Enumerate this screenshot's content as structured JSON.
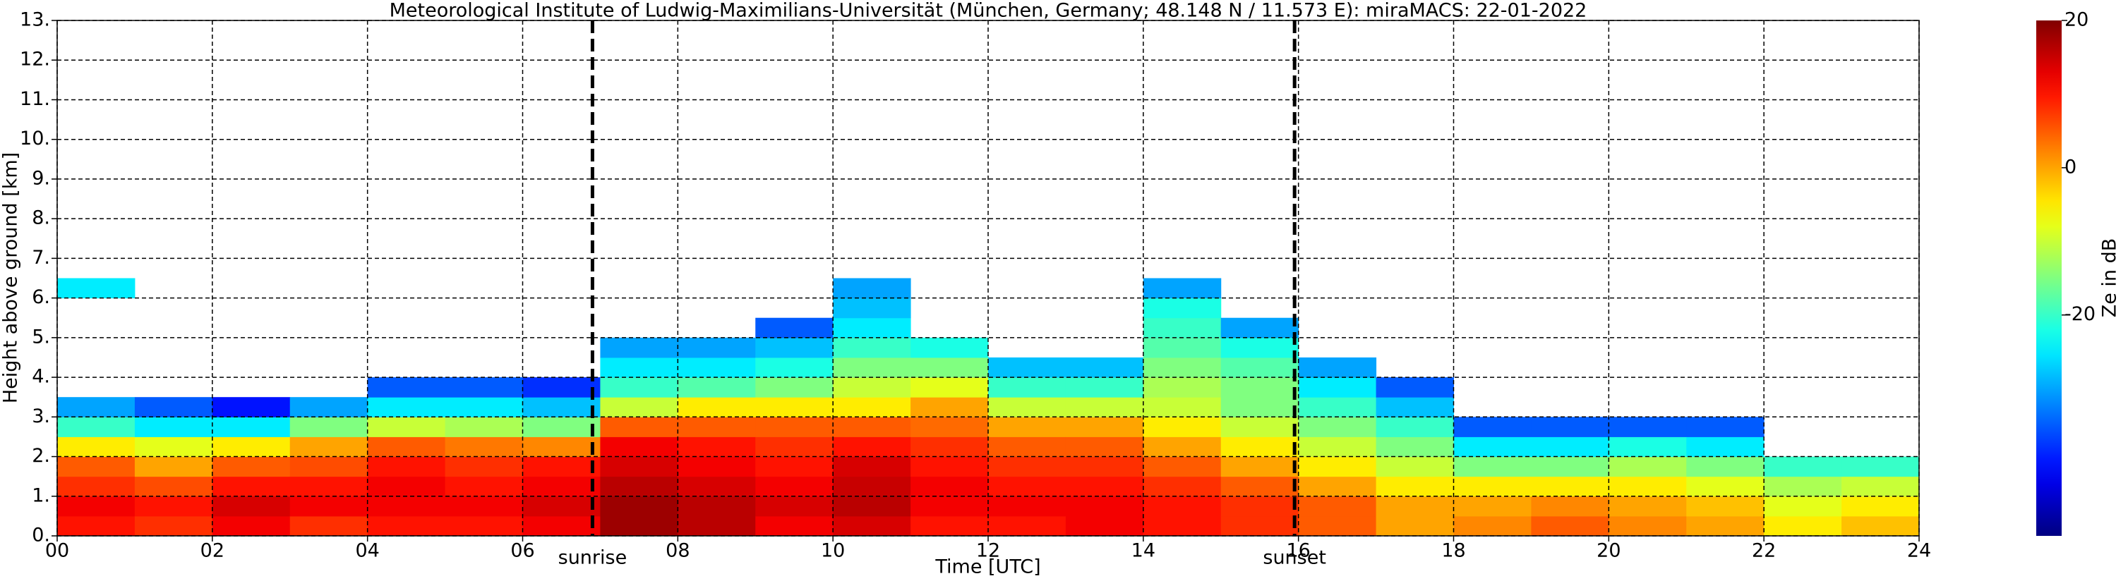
{
  "chart_data": {
    "type": "heatmap",
    "title": "Meteorological Institute of Ludwig-Maximilians-Universität (München, Germany; 48.148 N / 11.573 E):    miraMACS: 22-01-2022",
    "x_label": "Time [UTC]",
    "y_label": "Height above ground [km]",
    "colorbar_label": "Ze in dB",
    "colorscale": "jet",
    "clim": [
      -50,
      20
    ],
    "cticks": [
      20,
      0,
      -20
    ],
    "xlim": [
      0,
      24
    ],
    "ylim": [
      0,
      13
    ],
    "xticks": [
      {
        "value": 0,
        "label": "00"
      },
      {
        "value": 2,
        "label": "02"
      },
      {
        "value": 4,
        "label": "04"
      },
      {
        "value": 6,
        "label": "06"
      },
      {
        "value": 8,
        "label": "08"
      },
      {
        "value": 10,
        "label": "10"
      },
      {
        "value": 12,
        "label": "12"
      },
      {
        "value": 14,
        "label": "14"
      },
      {
        "value": 16,
        "label": "16"
      },
      {
        "value": 18,
        "label": "18"
      },
      {
        "value": 20,
        "label": "20"
      },
      {
        "value": 22,
        "label": "22"
      },
      {
        "value": 24,
        "label": "24"
      }
    ],
    "yticks": [
      {
        "value": 0,
        "label": "0."
      },
      {
        "value": 1,
        "label": "1."
      },
      {
        "value": 2,
        "label": "2."
      },
      {
        "value": 3,
        "label": "3."
      },
      {
        "value": 4,
        "label": "4."
      },
      {
        "value": 5,
        "label": "5."
      },
      {
        "value": 6,
        "label": "6."
      },
      {
        "value": 7,
        "label": "7."
      },
      {
        "value": 8,
        "label": "8."
      },
      {
        "value": 9,
        "label": "9."
      },
      {
        "value": 10,
        "label": "10."
      },
      {
        "value": 11,
        "label": "11."
      },
      {
        "value": 12,
        "label": "12."
      },
      {
        "value": 13,
        "label": "13."
      }
    ],
    "grid": true,
    "annotations": [
      {
        "text": "sunrise",
        "x": 6.9
      },
      {
        "text": "sunset",
        "x": 15.95
      }
    ],
    "x": [
      0,
      1,
      2,
      3,
      4,
      5,
      6,
      7,
      8,
      9,
      10,
      11,
      12,
      13,
      14,
      15,
      16,
      17,
      18,
      19,
      20,
      21,
      22,
      23,
      24
    ],
    "y": [
      0,
      0.5,
      1,
      1.5,
      2,
      2.5,
      3,
      3.5,
      4,
      4.5,
      5,
      5.5,
      6,
      6.5
    ],
    "values": [
      [
        10,
        12,
        8,
        5,
        -5,
        -20,
        -30,
        null,
        null,
        null,
        null,
        null,
        -25
      ],
      [
        8,
        10,
        6,
        0,
        -8,
        -25,
        -35,
        null,
        null,
        null,
        null,
        null,
        null
      ],
      [
        12,
        14,
        10,
        5,
        -5,
        -25,
        -40,
        null,
        null,
        null,
        null,
        null,
        null
      ],
      [
        8,
        12,
        10,
        6,
        0,
        -15,
        -30,
        null,
        null,
        null,
        null,
        null,
        null
      ],
      [
        10,
        12,
        12,
        10,
        5,
        -10,
        -25,
        -35,
        null,
        null,
        null,
        null,
        null
      ],
      [
        10,
        12,
        10,
        8,
        3,
        -12,
        -25,
        -35,
        null,
        null,
        null,
        null,
        null
      ],
      [
        12,
        14,
        12,
        10,
        2,
        -15,
        -28,
        -38,
        null,
        null,
        null,
        null,
        null
      ],
      [
        18,
        18,
        16,
        14,
        12,
        5,
        -10,
        -20,
        -25,
        -30,
        null,
        null,
        null
      ],
      [
        16,
        16,
        14,
        12,
        10,
        5,
        -5,
        -18,
        -25,
        -30,
        null,
        null,
        null
      ],
      [
        12,
        14,
        12,
        10,
        8,
        5,
        -5,
        -15,
        -22,
        -28,
        -35,
        null,
        null
      ],
      [
        14,
        16,
        15,
        14,
        10,
        5,
        -5,
        -10,
        -15,
        -20,
        -25,
        -28,
        -30
      ],
      [
        10,
        12,
        12,
        10,
        8,
        4,
        0,
        -8,
        -15,
        -22,
        null,
        null,
        null
      ],
      [
        10,
        12,
        10,
        8,
        5,
        0,
        -10,
        -20,
        -28,
        null,
        null,
        null,
        null
      ],
      [
        12,
        12,
        10,
        8,
        5,
        0,
        -10,
        -20,
        -28,
        null,
        null,
        null,
        null
      ],
      [
        10,
        10,
        8,
        5,
        0,
        -5,
        -10,
        -12,
        -15,
        -18,
        -20,
        -22,
        -30
      ],
      [
        8,
        8,
        5,
        0,
        -5,
        -10,
        -15,
        -15,
        -18,
        -22,
        -30,
        null,
        null
      ],
      [
        5,
        5,
        0,
        -5,
        -10,
        -15,
        -20,
        -25,
        -30,
        null,
        null,
        null,
        null
      ],
      [
        0,
        0,
        -5,
        -10,
        -15,
        -20,
        -28,
        -35,
        null,
        null,
        null,
        null,
        null
      ],
      [
        2,
        0,
        -5,
        -15,
        -25,
        -35,
        null,
        null,
        null,
        null,
        null,
        null,
        null
      ],
      [
        5,
        2,
        -5,
        -15,
        -25,
        -35,
        null,
        null,
        null,
        null,
        null,
        null,
        null
      ],
      [
        2,
        0,
        -5,
        -12,
        -22,
        -35,
        null,
        null,
        null,
        null,
        null,
        null,
        null
      ],
      [
        0,
        -2,
        -8,
        -15,
        -25,
        -35,
        null,
        null,
        null,
        null,
        null,
        null,
        null
      ],
      [
        -5,
        -8,
        -12,
        -20,
        null,
        null,
        null,
        null,
        null,
        null,
        null,
        null,
        null
      ],
      [
        -2,
        -5,
        -10,
        -20,
        null,
        null,
        null,
        null,
        null,
        null,
        null,
        null,
        null
      ]
    ]
  }
}
